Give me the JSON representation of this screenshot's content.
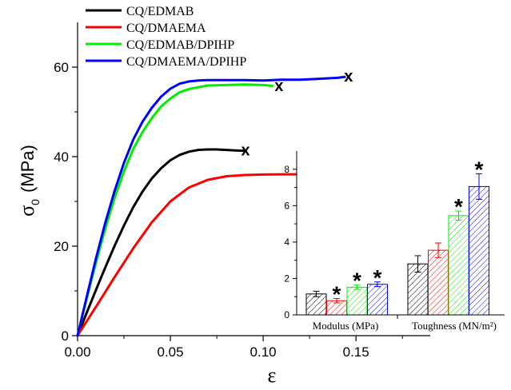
{
  "chart_data": [
    {
      "type": "line",
      "xlabel": "ε",
      "ylabel": "σ",
      "ylabel_subscript": "0",
      "ylabel_units": "(MPa)",
      "xlim": [
        0,
        0.19
      ],
      "ylim": [
        0,
        70
      ],
      "x_ticks": [
        0,
        0.05,
        0.1,
        0.15
      ],
      "x_tick_labels": [
        "0.00",
        "0.05",
        "0.10",
        "0.15"
      ],
      "y_ticks": [
        0,
        20,
        40,
        60
      ],
      "y_tick_labels": [
        "0",
        "20",
        "40",
        "60"
      ],
      "legend_position": "top-left",
      "failure_marker": "x",
      "series": [
        {
          "name": "CQ/EDMAB",
          "color": "#000000",
          "x": [
            0,
            0.005,
            0.01,
            0.015,
            0.02,
            0.025,
            0.03,
            0.035,
            0.04,
            0.045,
            0.05,
            0.055,
            0.06,
            0.065,
            0.07,
            0.075,
            0.08,
            0.085,
            0.09
          ],
          "y": [
            0,
            5.2,
            10.3,
            15.3,
            20.1,
            24.6,
            28.7,
            32.2,
            35.1,
            37.4,
            39.2,
            40.4,
            41.1,
            41.5,
            41.6,
            41.6,
            41.5,
            41.4,
            41.3
          ],
          "failure": [
            0.0905,
            41.3
          ]
        },
        {
          "name": "CQ/DMAEMA",
          "color": "#ff0000",
          "x": [
            0,
            0.01,
            0.02,
            0.03,
            0.04,
            0.05,
            0.06,
            0.07,
            0.08,
            0.09,
            0.1,
            0.11,
            0.12,
            0.13
          ],
          "y": [
            0,
            6.5,
            13.1,
            19.5,
            25.3,
            30.0,
            33.1,
            34.8,
            35.6,
            35.9,
            36.0,
            36.05,
            36.05,
            36.0
          ],
          "failure": [
            0.1325,
            35.9
          ]
        },
        {
          "name": "CQ/EDMAB/DPIHP",
          "color": "#00ee00",
          "x": [
            0,
            0.005,
            0.01,
            0.015,
            0.02,
            0.025,
            0.03,
            0.035,
            0.04,
            0.045,
            0.05,
            0.055,
            0.06,
            0.065,
            0.07,
            0.08,
            0.09,
            0.1,
            0.105
          ],
          "y": [
            0,
            8.4,
            16.4,
            24.0,
            30.8,
            36.7,
            41.7,
            45.5,
            48.6,
            51.2,
            53.0,
            54.4,
            55.1,
            55.5,
            55.9,
            56.0,
            56.1,
            56.0,
            55.8
          ],
          "failure": [
            0.1085,
            55.7
          ]
        },
        {
          "name": "CQ/DMAEMA/DPIHP",
          "color": "#0000ff",
          "x": [
            0,
            0.005,
            0.01,
            0.015,
            0.02,
            0.025,
            0.03,
            0.035,
            0.04,
            0.045,
            0.05,
            0.055,
            0.06,
            0.065,
            0.07,
            0.08,
            0.09,
            0.1,
            0.11,
            0.12,
            0.13,
            0.14,
            0.144
          ],
          "y": [
            0,
            8.8,
            17.4,
            25.3,
            32.4,
            38.6,
            43.8,
            47.8,
            50.9,
            53.4,
            55.2,
            56.3,
            56.8,
            57.0,
            57.1,
            57.1,
            57.1,
            57.0,
            57.2,
            57.2,
            57.4,
            57.6,
            57.8
          ],
          "failure": [
            0.146,
            57.9
          ]
        }
      ]
    },
    {
      "type": "bar",
      "group_labels": [
        "Modulus (MPa)",
        "Toughness (MN/m²)"
      ],
      "ylim": [
        0,
        9
      ],
      "y_ticks": [
        0,
        2,
        4,
        6,
        8
      ],
      "y_tick_labels": [
        "0",
        "2",
        "4",
        "6",
        "8"
      ],
      "significance_marker": "*",
      "series": [
        {
          "name": "CQ/EDMAB",
          "color": "#000000",
          "values": [
            1.15,
            2.8
          ],
          "errors": [
            0.15,
            0.45
          ],
          "significant": [
            false,
            false
          ]
        },
        {
          "name": "CQ/DMAEMA",
          "color": "#ff0000",
          "values": [
            0.78,
            3.55
          ],
          "errors": [
            0.12,
            0.4
          ],
          "significant": [
            true,
            false
          ]
        },
        {
          "name": "CQ/EDMAB/DPIHP",
          "color": "#00ee00",
          "values": [
            1.52,
            5.45
          ],
          "errors": [
            0.12,
            0.25
          ],
          "significant": [
            true,
            true
          ]
        },
        {
          "name": "CQ/DMAEMA/DPIHP",
          "color": "#0000ff",
          "values": [
            1.68,
            7.05
          ],
          "errors": [
            0.13,
            0.7
          ],
          "significant": [
            true,
            true
          ]
        }
      ]
    }
  ]
}
